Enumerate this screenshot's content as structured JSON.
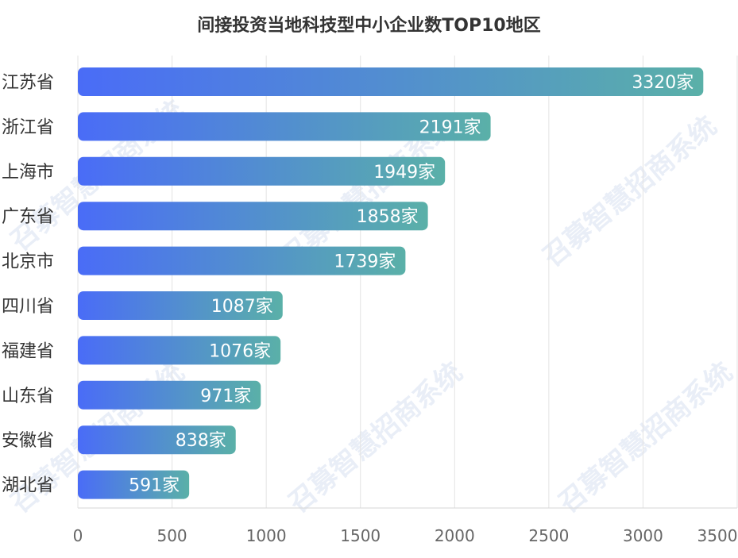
{
  "chart_data": {
    "type": "bar",
    "orientation": "horizontal",
    "title": "间接投资当地科技型中小企业数TOP10地区",
    "categories": [
      "江苏省",
      "浙江省",
      "上海市",
      "广东省",
      "北京市",
      "四川省",
      "福建省",
      "山东省",
      "安徽省",
      "湖北省"
    ],
    "values": [
      3320,
      2191,
      1949,
      1858,
      1739,
      1087,
      1076,
      971,
      838,
      591
    ],
    "value_labels": [
      "3320家",
      "2191家",
      "1949家",
      "1858家",
      "1739家",
      "1087家",
      "1076家",
      "971家",
      "838家",
      "591家"
    ],
    "xlim": [
      0,
      3500
    ],
    "xticks": [
      0,
      500,
      1000,
      1500,
      2000,
      2500,
      3000,
      3500
    ],
    "xlabel": "",
    "ylabel": "",
    "grid": true,
    "bar_gradient": [
      "#4a6cf7",
      "#5ab0a8"
    ],
    "watermark": "召募智慧招商系统"
  }
}
